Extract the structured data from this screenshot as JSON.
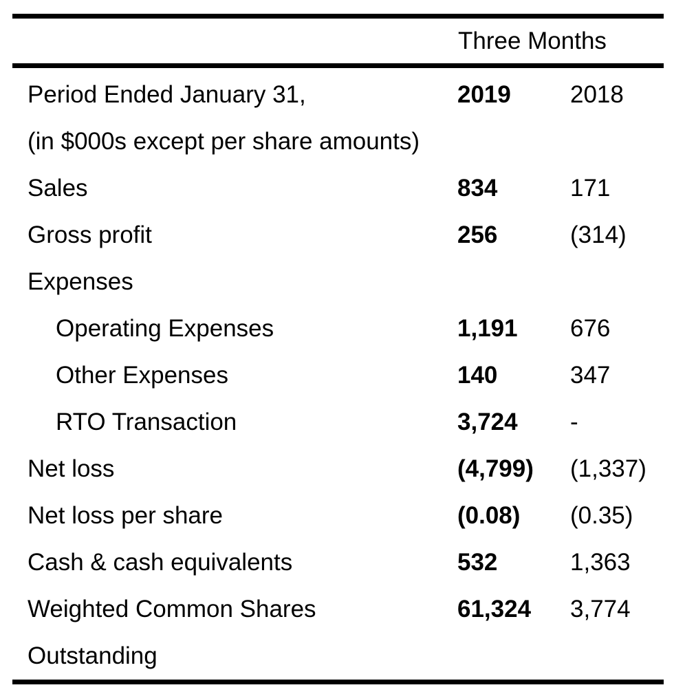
{
  "document": {
    "header": {
      "span_label": "Three Months"
    },
    "columns": {
      "col_2019": "2019",
      "col_2018": "2018"
    },
    "rows": [
      {
        "label": "Period Ended January 31,",
        "v1": "2019",
        "v2": "2018"
      },
      {
        "label": "(in $000s except per share amounts)",
        "v1": "",
        "v2": ""
      },
      {
        "label": "Sales",
        "v1": "834",
        "v2": "171"
      },
      {
        "label": "Gross profit",
        "v1": "256",
        "v2": "(314)"
      },
      {
        "label": "Expenses",
        "v1": "",
        "v2": ""
      },
      {
        "label": "Operating Expenses",
        "v1": "1,191",
        "v2": "676"
      },
      {
        "label": "Other Expenses",
        "v1": "140",
        "v2": "347"
      },
      {
        "label": "RTO Transaction",
        "v1": "3,724",
        "v2": "-"
      },
      {
        "label": "Net loss",
        "v1": "(4,799)",
        "v2": "(1,337)"
      },
      {
        "label": "Net loss per share",
        "v1": "(0.08)",
        "v2": "(0.35)"
      },
      {
        "label": "Cash & cash equivalents",
        "v1": "532",
        "v2": "1,363"
      },
      {
        "label": "Weighted Common Shares",
        "v1": "61,324",
        "v2": "3,774"
      },
      {
        "label": "Outstanding",
        "v1": "",
        "v2": ""
      }
    ]
  }
}
